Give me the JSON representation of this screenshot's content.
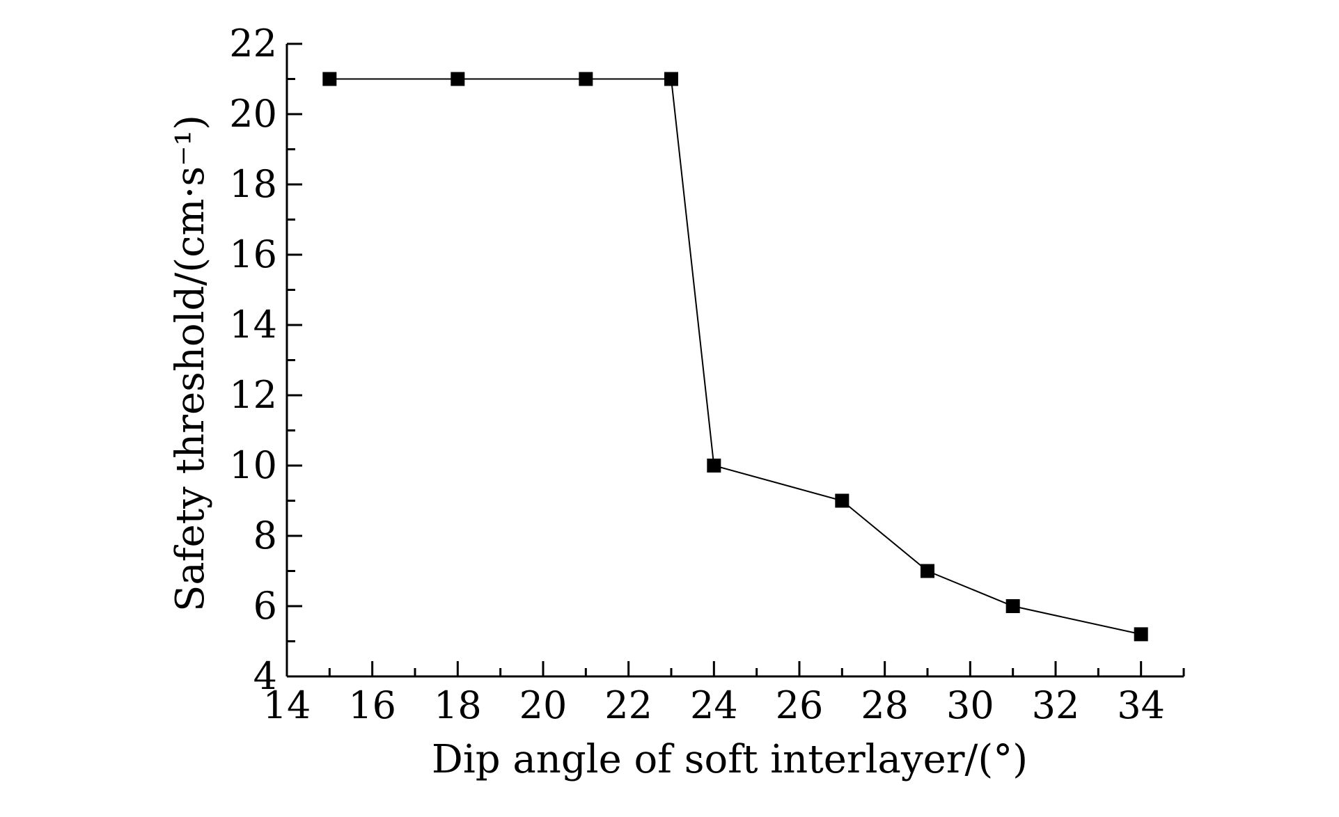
{
  "chart_data": {
    "type": "line",
    "title": "",
    "xlabel": "Dip angle of soft interlayer/(°)",
    "ylabel": "Safety threshold/(cm·s⁻¹)",
    "xlim": [
      14,
      35
    ],
    "ylim": [
      4,
      22
    ],
    "x_ticks": [
      14,
      16,
      18,
      20,
      22,
      24,
      26,
      28,
      30,
      32,
      34
    ],
    "y_ticks": [
      4,
      6,
      8,
      10,
      12,
      14,
      16,
      18,
      20,
      22
    ],
    "grid": false,
    "legend": "none",
    "colors": {
      "line": "#000000",
      "marker": "#000000"
    },
    "marker": "square",
    "series": [
      {
        "x": [
          15,
          18,
          21,
          23,
          24,
          27,
          29,
          31,
          34
        ],
        "values": [
          21,
          21,
          21,
          21,
          10,
          9,
          7,
          6,
          5.2
        ]
      }
    ]
  }
}
